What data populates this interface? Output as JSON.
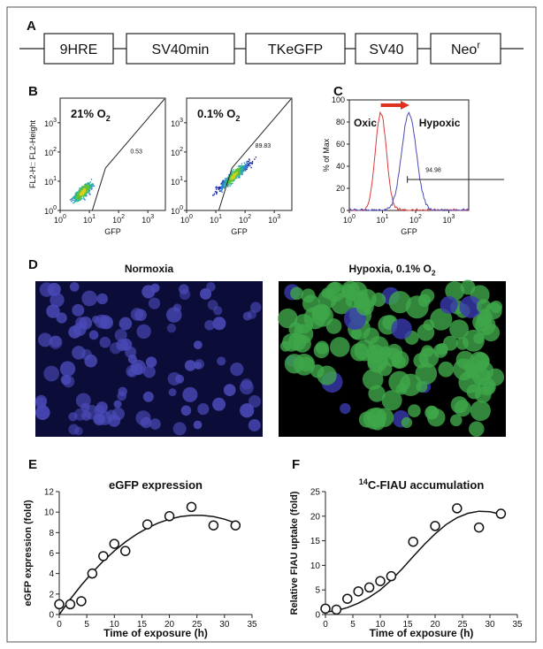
{
  "panel_labels": [
    "A",
    "B",
    "C",
    "D",
    "E",
    "F"
  ],
  "construct": [
    {
      "text": "9HRE"
    },
    {
      "text": "SV40min"
    },
    {
      "text": "TKeGFP"
    },
    {
      "text": "SV40"
    },
    {
      "text": "Neo",
      "sup": "r"
    }
  ],
  "flow_plots": {
    "log_base": "10",
    "exponents": [
      0,
      1,
      2,
      3
    ],
    "x_label": "GFP",
    "y_label": "FL2-H:: FL2-Height",
    "plots": [
      {
        "condition": {
          "text": "21% O",
          "sub": "2"
        },
        "gate_value": 0.53
      },
      {
        "condition": {
          "text": "0.1% O",
          "sub": "2"
        },
        "gate_value": 89.83
      }
    ]
  },
  "histogram": {
    "y_label": "% of Max",
    "x_label": "GFP",
    "ylim": [
      0,
      100
    ],
    "yticks": [
      0,
      20,
      40,
      60,
      80,
      100
    ],
    "oxic": "Oxic",
    "hypoxic": "Hypoxic",
    "gate_value": 94.98
  },
  "microscopy": [
    {
      "text": "Normoxia"
    },
    {
      "text": "Hypoxia, 0.1% O",
      "sub": "2"
    }
  ],
  "chart_data": [
    {
      "type": "scatter",
      "title": {
        "text": "eGFP expression"
      },
      "x_label": "Time of exposure (h)",
      "y_label": "eGFP expression (fold)",
      "x": [
        0,
        2,
        4,
        6,
        8,
        10,
        12,
        16,
        20,
        24,
        28,
        32
      ],
      "values": [
        1.0,
        1.0,
        1.3,
        4.0,
        5.7,
        6.9,
        6.2,
        8.8,
        9.6,
        10.5,
        8.7,
        8.7
      ],
      "fit_x": [
        0,
        2,
        4,
        6,
        8,
        10,
        12,
        14,
        16,
        18,
        20,
        22,
        24,
        26,
        28,
        30,
        32
      ],
      "fit_values": [
        0.0,
        1.5,
        2.86,
        4.1,
        5.22,
        6.21,
        7.08,
        7.82,
        8.44,
        8.94,
        9.31,
        9.56,
        9.68,
        9.68,
        9.56,
        9.31,
        8.94
      ],
      "xlim": [
        0,
        35
      ],
      "xticks": [
        0,
        5,
        10,
        15,
        20,
        25,
        30,
        35
      ],
      "ylim": [
        0,
        12
      ],
      "yticks": [
        0,
        2,
        4,
        6,
        8,
        10,
        12
      ]
    },
    {
      "type": "scatter",
      "title": {
        "sup": "14",
        "text": "C-FIAU accumulation"
      },
      "x_label": "Time of exposure (h)",
      "y_label": "Relative FIAU uptake (fold)",
      "x": [
        0,
        2,
        4,
        6,
        8,
        10,
        12,
        16,
        20,
        24,
        28,
        32
      ],
      "values": [
        1.2,
        1.0,
        3.2,
        4.7,
        5.5,
        6.8,
        7.8,
        14.8,
        18.0,
        21.6,
        17.7,
        20.5
      ],
      "fit_x": [
        0,
        2,
        4,
        6,
        8,
        10,
        12,
        14,
        16,
        18,
        20,
        22,
        24,
        26,
        28,
        30,
        32
      ],
      "fit_values": [
        0.5,
        0.8,
        1.4,
        2.3,
        3.5,
        5.0,
        7.0,
        9.3,
        11.8,
        14.2,
        16.4,
        18.3,
        19.7,
        20.6,
        21.0,
        20.9,
        20.4
      ],
      "xlim": [
        0,
        35
      ],
      "xticks": [
        0,
        5,
        10,
        15,
        20,
        25,
        30,
        35
      ],
      "ylim": [
        0,
        25
      ],
      "yticks": [
        0,
        5,
        10,
        15,
        20,
        25
      ]
    }
  ]
}
